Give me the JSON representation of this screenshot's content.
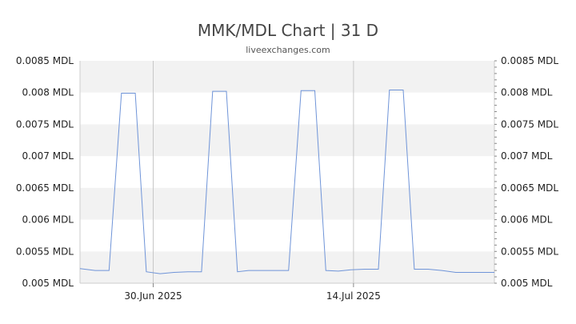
{
  "chart_data": {
    "type": "line",
    "title": "MMK/MDL Chart | 31 D",
    "subtitle": "liveexchanges.com",
    "ylim": [
      0.005,
      0.0085
    ],
    "yticks": [
      0.005,
      0.0055,
      0.006,
      0.0065,
      0.007,
      0.0075,
      0.008,
      0.0085
    ],
    "ytick_labels": [
      "0.005 MDL",
      "0.0055 MDL",
      "0.006 MDL",
      "0.0065 MDL",
      "0.007 MDL",
      "0.0075 MDL",
      "0.008 MDL",
      "0.0085 MDL"
    ],
    "x_range": [
      0,
      30
    ],
    "xticks": [
      {
        "x": 5.3,
        "label": "30.Jun 2025"
      },
      {
        "x": 19.8,
        "label": "14.Jul 2025"
      }
    ],
    "grid": "alternating horizontal bands",
    "series": [
      {
        "color": "#6f94d8",
        "points": [
          [
            0,
            0.00523
          ],
          [
            1.1,
            0.0052
          ],
          [
            2.1,
            0.0052
          ],
          [
            3.0,
            0.00799
          ],
          [
            4.0,
            0.00799
          ],
          [
            4.8,
            0.00518
          ],
          [
            5.8,
            0.00515
          ],
          [
            6.8,
            0.00517
          ],
          [
            7.8,
            0.00518
          ],
          [
            8.8,
            0.00518
          ],
          [
            9.6,
            0.00802
          ],
          [
            10.6,
            0.00802
          ],
          [
            11.4,
            0.00518
          ],
          [
            12.2,
            0.0052
          ],
          [
            13.2,
            0.0052
          ],
          [
            15.1,
            0.0052
          ],
          [
            16.0,
            0.00803
          ],
          [
            17.0,
            0.00803
          ],
          [
            17.8,
            0.0052
          ],
          [
            18.7,
            0.00519
          ],
          [
            19.6,
            0.00521
          ],
          [
            20.6,
            0.00522
          ],
          [
            21.6,
            0.00522
          ],
          [
            22.4,
            0.00804
          ],
          [
            23.4,
            0.00804
          ],
          [
            24.2,
            0.00522
          ],
          [
            25.2,
            0.00522
          ],
          [
            26.2,
            0.0052
          ],
          [
            27.2,
            0.00517
          ],
          [
            28.2,
            0.00517
          ],
          [
            29.0,
            0.00517
          ],
          [
            30,
            0.00517
          ]
        ]
      }
    ]
  }
}
